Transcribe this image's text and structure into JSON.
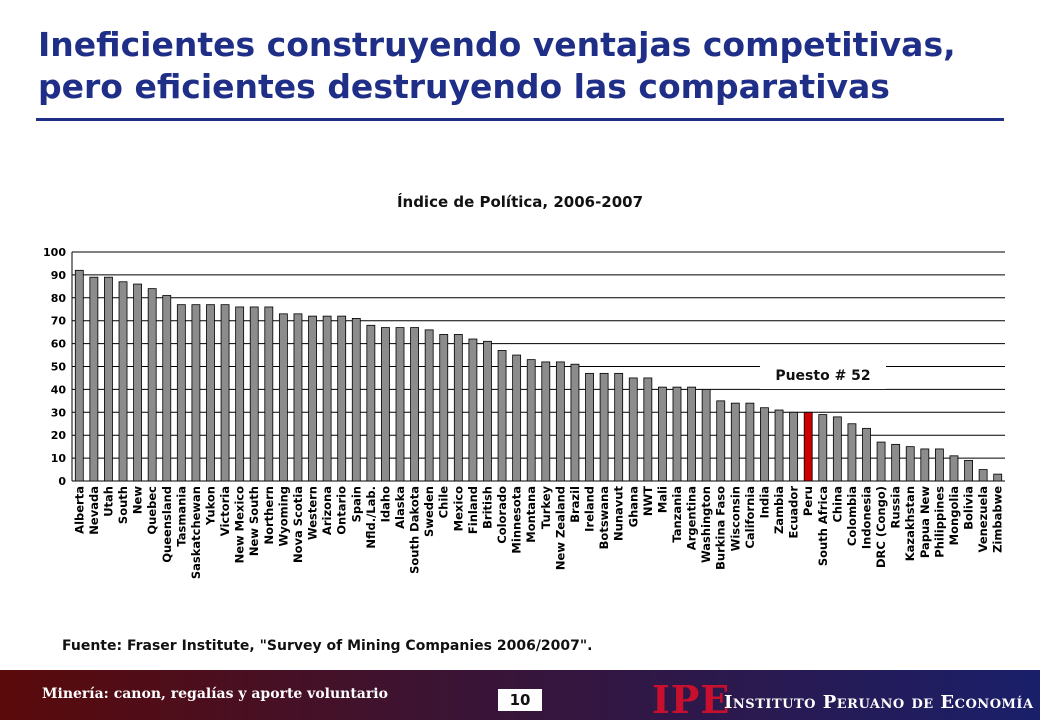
{
  "slide": {
    "title": "Ineficientes construyendo ventajas competitivas, pero eficientes destruyendo las comparativas",
    "source": "Fuente: Fraser Institute, \"Survey of Mining Companies 2006/2007\".",
    "callout": "Puesto # 52"
  },
  "footer": {
    "left_text": "Minería: canon, regalías y aporte voluntario",
    "page_number": "10",
    "logo": "IPE",
    "org_name": "Instituto Peruano de Economía"
  },
  "colors": {
    "title": "#1f2f88",
    "bar": "#8c8c8c",
    "highlight": "#cc0000"
  },
  "chart_data": {
    "type": "bar",
    "title": "Índice de Política, 2006-2007",
    "xlabel": "",
    "ylabel": "",
    "ylim": [
      0,
      100
    ],
    "yticks": [
      0,
      10,
      20,
      30,
      40,
      50,
      60,
      70,
      80,
      90,
      100
    ],
    "grid": true,
    "highlight_category": "Peru",
    "categories": [
      "Alberta",
      "Nevada",
      "Utah",
      "South",
      "New",
      "Quebec",
      "Queensland",
      "Tasmania",
      "Saskatchewan",
      "Yukon",
      "Victoria",
      "New Mexico",
      "New South",
      "Northern",
      "Wyoming",
      "Nova Scotia",
      "Western",
      "Arizona",
      "Ontario",
      "Spain",
      "Nfld./Lab.",
      "Idaho",
      "Alaska",
      "South Dakota",
      "Sweden",
      "Chile",
      "Mexico",
      "Finland",
      "British",
      "Colorado",
      "Minnesota",
      "Montana",
      "Turkey",
      "New Zealand",
      "Brazil",
      "Ireland",
      "Botswana",
      "Nunavut",
      "Ghana",
      "NWT",
      "Mali",
      "Tanzania",
      "Argentina",
      "Washington",
      "Burkina Faso",
      "Wisconsin",
      "California",
      "India",
      "Zambia",
      "Ecuador",
      "Peru",
      "South Africa",
      "China",
      "Colombia",
      "Indonesia",
      "DRC (Congo)",
      "Russia",
      "Kazakhstan",
      "Papua New",
      "Philippines",
      "Mongolia",
      "Bolivia",
      "Venezuela",
      "Zimbabwe"
    ],
    "values": [
      92,
      89,
      89,
      87,
      86,
      84,
      81,
      77,
      77,
      77,
      77,
      76,
      76,
      76,
      73,
      73,
      72,
      72,
      72,
      71,
      68,
      67,
      67,
      67,
      66,
      64,
      64,
      62,
      61,
      57,
      55,
      53,
      52,
      52,
      51,
      47,
      47,
      47,
      45,
      45,
      41,
      41,
      41,
      40,
      35,
      34,
      34,
      32,
      31,
      30,
      30,
      29,
      28,
      25,
      23,
      17,
      16,
      15,
      14,
      14,
      11,
      9,
      5,
      3
    ]
  }
}
